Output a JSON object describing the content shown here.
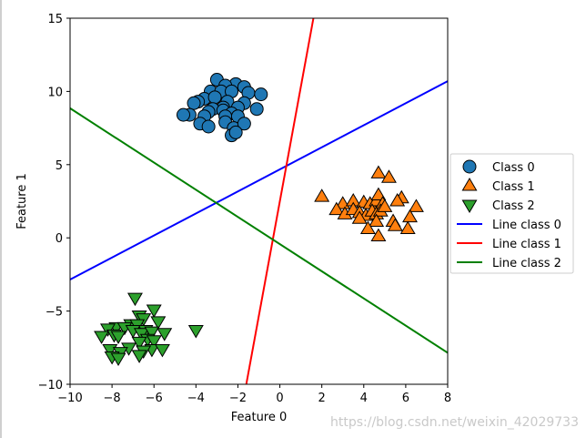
{
  "chart_data": {
    "type": "scatter",
    "title": "",
    "xlabel": "Feature 0",
    "ylabel": "Feature 1",
    "xlim": [
      -10,
      8
    ],
    "ylim": [
      -10,
      15
    ],
    "xticks": [
      -10,
      -8,
      -6,
      -4,
      -2,
      0,
      2,
      4,
      6,
      8
    ],
    "yticks": [
      -10,
      -5,
      0,
      5,
      10,
      15
    ],
    "tick_labels_x": [
      "−10",
      "−8",
      "−6",
      "−4",
      "−2",
      "0",
      "2",
      "4",
      "6",
      "8"
    ],
    "tick_labels_y": [
      "−10",
      "−5",
      "0",
      "5",
      "10",
      "15"
    ],
    "grid": false,
    "legend_placement": "center-right-outside",
    "series": [
      {
        "name": "Class 0",
        "marker": "circle",
        "color": "#1f77b4",
        "points": [
          [
            -3.0,
            10.8
          ],
          [
            -2.1,
            10.5
          ],
          [
            -1.7,
            10.3
          ],
          [
            -2.6,
            10.4
          ],
          [
            -3.3,
            10.0
          ],
          [
            -2.8,
            10.0
          ],
          [
            -2.3,
            10.0
          ],
          [
            -1.5,
            9.9
          ],
          [
            -0.9,
            9.8
          ],
          [
            -3.6,
            9.5
          ],
          [
            -3.1,
            9.6
          ],
          [
            -2.5,
            9.3
          ],
          [
            -3.9,
            9.3
          ],
          [
            -4.1,
            9.2
          ],
          [
            -1.7,
            9.2
          ],
          [
            -2.7,
            8.9
          ],
          [
            -3.2,
            8.8
          ],
          [
            -2.0,
            8.9
          ],
          [
            -3.4,
            8.6
          ],
          [
            -2.7,
            8.7
          ],
          [
            -2.3,
            8.5
          ],
          [
            -1.1,
            8.8
          ],
          [
            -4.3,
            8.4
          ],
          [
            -4.6,
            8.4
          ],
          [
            -3.6,
            8.3
          ],
          [
            -2.6,
            8.3
          ],
          [
            -2.0,
            8.3
          ],
          [
            -3.8,
            7.8
          ],
          [
            -3.4,
            7.6
          ],
          [
            -2.6,
            7.9
          ],
          [
            -2.2,
            7.5
          ],
          [
            -1.7,
            7.8
          ],
          [
            -2.3,
            7.0
          ],
          [
            -2.1,
            7.2
          ]
        ]
      },
      {
        "name": "Class 1",
        "marker": "triangle-up",
        "color": "#ff7f0e",
        "points": [
          [
            4.7,
            4.4
          ],
          [
            5.2,
            4.1
          ],
          [
            2.0,
            2.8
          ],
          [
            3.0,
            2.3
          ],
          [
            3.5,
            2.5
          ],
          [
            4.0,
            2.4
          ],
          [
            4.3,
            2.3
          ],
          [
            4.6,
            2.5
          ],
          [
            4.7,
            2.9
          ],
          [
            4.9,
            2.3
          ],
          [
            5.8,
            2.7
          ],
          [
            5.6,
            2.5
          ],
          [
            6.5,
            2.1
          ],
          [
            2.7,
            1.9
          ],
          [
            3.1,
            1.6
          ],
          [
            3.5,
            1.9
          ],
          [
            3.8,
            1.7
          ],
          [
            4.1,
            1.5
          ],
          [
            4.4,
            1.8
          ],
          [
            4.6,
            1.6
          ],
          [
            4.8,
            1.8
          ],
          [
            5.0,
            2.1
          ],
          [
            5.4,
            1.1
          ],
          [
            5.5,
            0.8
          ],
          [
            6.2,
            1.4
          ],
          [
            3.8,
            1.3
          ],
          [
            4.6,
            1.1
          ],
          [
            4.2,
            0.6
          ],
          [
            6.1,
            0.6
          ],
          [
            4.7,
            0.1
          ]
        ]
      },
      {
        "name": "Class 2",
        "marker": "triangle-down",
        "color": "#2ca02c",
        "points": [
          [
            -6.9,
            -4.1
          ],
          [
            -6.0,
            -4.9
          ],
          [
            -6.7,
            -5.3
          ],
          [
            -6.5,
            -5.5
          ],
          [
            -7.1,
            -5.9
          ],
          [
            -7.8,
            -6.1
          ],
          [
            -8.2,
            -6.2
          ],
          [
            -6.8,
            -5.9
          ],
          [
            -6.4,
            -6.3
          ],
          [
            -5.8,
            -5.7
          ],
          [
            -7.9,
            -6.6
          ],
          [
            -7.4,
            -6.1
          ],
          [
            -7.0,
            -6.3
          ],
          [
            -6.6,
            -6.5
          ],
          [
            -6.1,
            -6.4
          ],
          [
            -5.5,
            -6.5
          ],
          [
            -4.0,
            -6.3
          ],
          [
            -8.5,
            -6.7
          ],
          [
            -7.7,
            -6.7
          ],
          [
            -6.3,
            -6.9
          ],
          [
            -6.0,
            -7.0
          ],
          [
            -6.7,
            -7.1
          ],
          [
            -7.2,
            -7.5
          ],
          [
            -8.1,
            -7.6
          ],
          [
            -6.1,
            -7.6
          ],
          [
            -7.6,
            -7.8
          ],
          [
            -6.5,
            -7.7
          ],
          [
            -5.6,
            -7.6
          ],
          [
            -6.7,
            -8.0
          ],
          [
            -8.0,
            -8.1
          ],
          [
            -7.7,
            -8.2
          ]
        ]
      }
    ],
    "lines": [
      {
        "name": "Line class 0",
        "color": "#0000ff",
        "x": [
          -10,
          8
        ],
        "y": [
          -2.85,
          10.7
        ]
      },
      {
        "name": "Line class 1",
        "color": "#ff0000",
        "x": [
          -1.6,
          1.6
        ],
        "y": [
          -10,
          15
        ]
      },
      {
        "name": "Line class 2",
        "color": "#008000",
        "x": [
          -10,
          8
        ],
        "y": [
          8.85,
          -7.85
        ]
      }
    ]
  },
  "watermark": "https://blog.csdn.net/weixin_42029733"
}
